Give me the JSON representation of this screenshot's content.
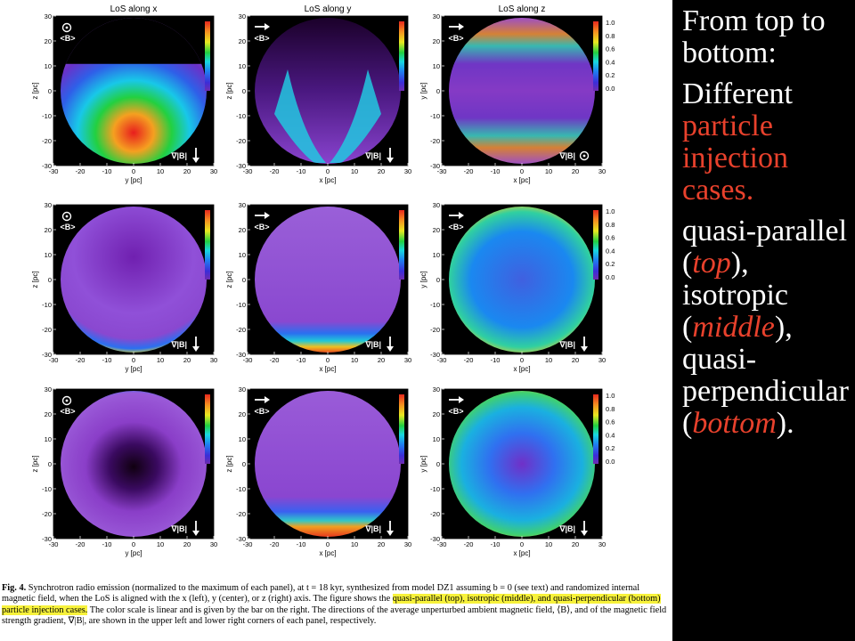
{
  "column_titles": [
    "LoS along x",
    "LoS along y",
    "LoS along z"
  ],
  "x_axis_labels": [
    "y [pc]",
    "x [pc]",
    "x [pc]"
  ],
  "y_axis_labels": [
    "z [pc]",
    "z [pc]",
    "y [pc]"
  ],
  "tick_values": [
    "-30",
    "-20",
    "-10",
    "0",
    "10",
    "20",
    "30"
  ],
  "colorbar_ticks": [
    "1.0",
    "0.8",
    "0.6",
    "0.4",
    "0.2",
    "0.0"
  ],
  "icons": {
    "b_field_x": "circle-dot-icon",
    "b_field_yz": "right-arrow-icon",
    "gradient_xy": "down-arrow-icon",
    "gradient_z": "circle-dot-icon"
  },
  "b_label": "<B>",
  "grad_label": "∇|B|",
  "caption": {
    "fig_label": "Fig. 4.",
    "part1": " Synchrotron radio emission (normalized to the maximum of each panel), at t = 18 kyr, synthesized from model DZ1 assuming b = 0 (see text) and randomized internal magnetic field, when the LoS is aligned with the x (left), y (center), or z (right) axis. The figure shows the ",
    "highlight": "quasi-parallel (top), isotropic (middle), and quasi-perpendicular (bottom) particle injection cases.",
    "part2": " The color scale is linear and is given by the bar on the right. The directions of the average unperturbed ambient magnetic field, ⟨B⟩, and of the magnetic field strength gradient, ∇|B|, are shown in the upper left and lower right corners of each panel, respectively."
  },
  "side_text": {
    "p1": "From top to bottom:",
    "p2_a": "Different ",
    "p2_b": "particle injection cases.",
    "p3_1": "quasi-parallel (",
    "p3_2": "top",
    "p3_3": "), isotropic (",
    "p3_4": "middle",
    "p3_5": "), quasi-perpendicular (",
    "p3_6": "bottom",
    "p3_7": ")."
  },
  "colors": {
    "background": "#000000",
    "panel_bg": "#ffffff",
    "side_text": "#ffffff",
    "accent_red": "#e8412c",
    "highlight": "#f7f23b"
  }
}
